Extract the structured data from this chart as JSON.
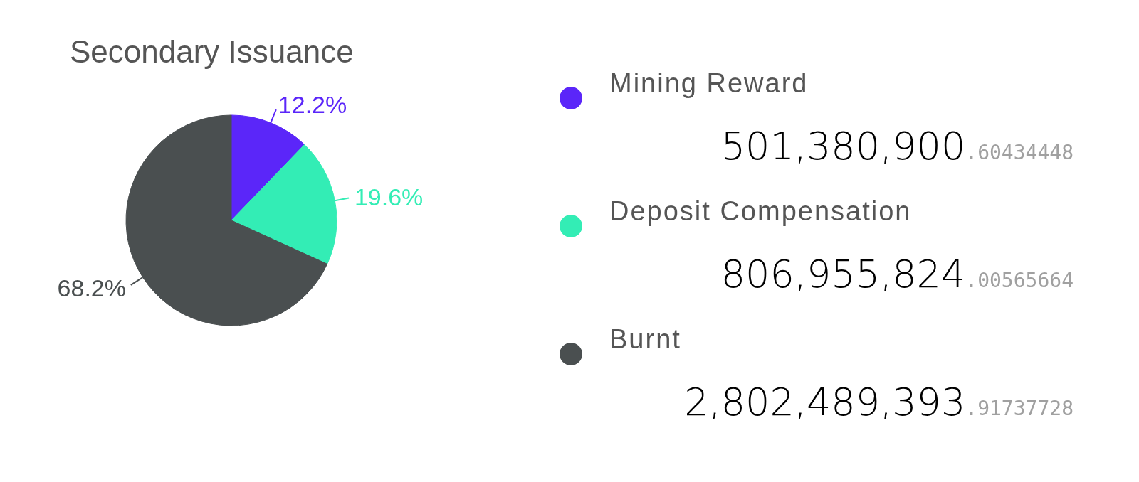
{
  "chart_data": {
    "type": "pie",
    "title": "Secondary Issuance",
    "categories": [
      "Mining Reward",
      "Deposit Compensation",
      "Burnt"
    ],
    "values": [
      12.2,
      19.6,
      68.2
    ],
    "colors": [
      "#5b26f9",
      "#33edb5",
      "#4a4f50"
    ],
    "value_labels": [
      "12.2%",
      "19.6%",
      "68.2%"
    ],
    "legend": "right",
    "annotations": [
      "501,380,900.60434448",
      "806,955,824.00565664",
      "2,802,489,393.91737728"
    ]
  }
}
